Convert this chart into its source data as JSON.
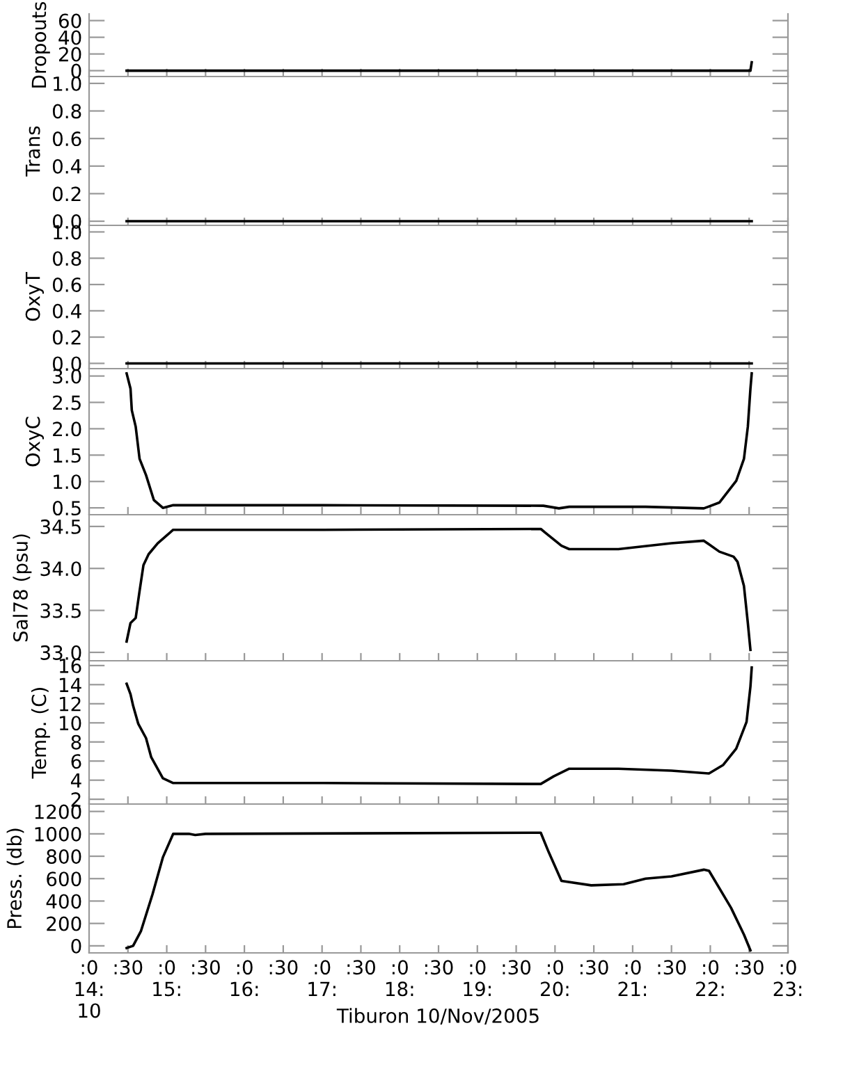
{
  "chart_data": [
    {
      "type": "line",
      "ylabel": "Dropouts",
      "x": [
        "2005-11-10T14:29",
        "2005-11-10T22:31",
        "2005-11-10T22:32"
      ],
      "series": [
        {
          "color": "#000000",
          "values": [
            0,
            0,
            10
          ]
        }
      ],
      "xlim": [
        "2005-11-10T14:00",
        "2005-11-10T23:00"
      ],
      "ylim": [
        -7,
        68
      ],
      "yticks": [
        0,
        20,
        40,
        60
      ],
      "tick_labels": "y"
    },
    {
      "type": "line",
      "ylabel": "Trans",
      "x": [
        "2005-11-10T14:29",
        "2005-11-10T22:32"
      ],
      "series": [
        {
          "color": "#000000",
          "values": [
            0,
            0
          ]
        }
      ],
      "xlim": [
        "2005-11-10T14:00",
        "2005-11-10T23:00"
      ],
      "ylim": [
        -0.03,
        1.05
      ],
      "yticks": [
        {
          "value": 0,
          "label": "0.0"
        },
        {
          "value": 0.2,
          "label": "0.2"
        },
        {
          "value": 0.4,
          "label": "0.4"
        },
        {
          "value": 0.6,
          "label": "0.6"
        },
        {
          "value": 0.8,
          "label": "0.8"
        },
        {
          "value": 1.0,
          "label": "1.0"
        }
      ],
      "tick_labels": "y"
    },
    {
      "type": "line",
      "ylabel": "OxyT",
      "x": [
        "2005-11-10T14:29",
        "2005-11-10T22:32"
      ],
      "series": [
        {
          "color": "#000000",
          "values": [
            0,
            0
          ]
        }
      ],
      "xlim": [
        "2005-11-10T14:00",
        "2005-11-10T23:00"
      ],
      "ylim": [
        -0.04,
        1.05
      ],
      "yticks": [
        {
          "value": 0,
          "label": "0.0"
        },
        {
          "value": 0.2,
          "label": "0.2"
        },
        {
          "value": 0.4,
          "label": "0.4"
        },
        {
          "value": 0.6,
          "label": "0.6"
        },
        {
          "value": 0.8,
          "label": "0.8"
        },
        {
          "value": 1.0,
          "label": "1.0"
        }
      ],
      "tick_labels": "y"
    },
    {
      "type": "line",
      "ylabel": "OxyC",
      "x": [
        "2005-11-10T14:29",
        "2005-11-10T14:32",
        "2005-11-10T14:33",
        "2005-11-10T14:36",
        "2005-11-10T14:39",
        "2005-11-10T14:44",
        "2005-11-10T14:50",
        "2005-11-10T14:57",
        "2005-11-10T15:05",
        "2005-11-10T17:01",
        "2005-11-10T19:51",
        "2005-11-10T20:03",
        "2005-11-10T20:11",
        "2005-11-10T21:10",
        "2005-11-10T21:55",
        "2005-11-10T22:07",
        "2005-11-10T22:20",
        "2005-11-10T22:26",
        "2005-11-10T22:29",
        "2005-11-10T22:31",
        "2005-11-10T22:32"
      ],
      "series": [
        {
          "color": "#000000",
          "values": [
            3.05,
            2.76,
            2.35,
            2.04,
            1.43,
            1.12,
            0.65,
            0.5,
            0.55,
            0.55,
            0.54,
            0.49,
            0.52,
            0.52,
            0.49,
            0.6,
            1.01,
            1.43,
            2.04,
            2.76,
            3.05
          ]
        }
      ],
      "xlim": [
        "2005-11-10T14:00",
        "2005-11-10T23:00"
      ],
      "ylim": [
        0.37,
        3.14
      ],
      "yticks": [
        {
          "value": 0.5,
          "label": "0.5"
        },
        {
          "value": 1.0,
          "label": "1.0"
        },
        {
          "value": 1.5,
          "label": "1.5"
        },
        {
          "value": 2.0,
          "label": "2.0"
        },
        {
          "value": 2.5,
          "label": "2.5"
        },
        {
          "value": 3.0,
          "label": "3.0"
        }
      ],
      "tick_labels": "y"
    },
    {
      "type": "line",
      "ylabel": "Sal78 (psu)",
      "x": [
        "2005-11-10T14:29",
        "2005-11-10T14:32",
        "2005-11-10T14:36",
        "2005-11-10T14:39",
        "2005-11-10T14:42",
        "2005-11-10T14:46",
        "2005-11-10T14:53",
        "2005-11-10T15:05",
        "2005-11-10T17:01",
        "2005-11-10T19:49",
        "2005-11-10T19:53",
        "2005-11-10T20:05",
        "2005-11-10T20:11",
        "2005-11-10T20:49",
        "2005-11-10T21:30",
        "2005-11-10T21:55",
        "2005-11-10T22:07",
        "2005-11-10T22:18",
        "2005-11-10T22:21",
        "2005-11-10T22:26",
        "2005-11-10T22:29",
        "2005-11-10T22:31"
      ],
      "series": [
        {
          "color": "#000000",
          "values": [
            33.13,
            33.35,
            33.41,
            33.73,
            34.04,
            34.17,
            34.3,
            34.46,
            34.46,
            34.47,
            34.42,
            34.27,
            34.23,
            34.23,
            34.3,
            34.33,
            34.2,
            34.14,
            34.08,
            33.79,
            33.35,
            33.03
          ]
        }
      ],
      "xlim": [
        "2005-11-10T14:00",
        "2005-11-10T23:00"
      ],
      "ylim": [
        32.9,
        34.64
      ],
      "yticks": [
        {
          "value": 33.0,
          "label": "33.0"
        },
        {
          "value": 33.5,
          "label": "33.5"
        },
        {
          "value": 34.0,
          "label": "34.0"
        },
        {
          "value": 34.5,
          "label": "34.5"
        }
      ],
      "tick_labels": "y"
    },
    {
      "type": "line",
      "ylabel": "Temp. (C)",
      "x": [
        "2005-11-10T14:29",
        "2005-11-10T14:32",
        "2005-11-10T14:34",
        "2005-11-10T14:38",
        "2005-11-10T14:44",
        "2005-11-10T14:48",
        "2005-11-10T14:57",
        "2005-11-10T15:05",
        "2005-11-10T17:01",
        "2005-11-10T19:49",
        "2005-11-10T19:59",
        "2005-11-10T20:11",
        "2005-11-10T20:49",
        "2005-11-10T21:30",
        "2005-11-10T21:59",
        "2005-11-10T22:10",
        "2005-11-10T22:20",
        "2005-11-10T22:28",
        "2005-11-10T22:31",
        "2005-11-10T22:32"
      ],
      "series": [
        {
          "color": "#000000",
          "values": [
            14.1,
            13.0,
            11.8,
            9.9,
            8.4,
            6.4,
            4.2,
            3.7,
            3.7,
            3.6,
            4.4,
            5.2,
            5.2,
            5.0,
            4.7,
            5.6,
            7.3,
            10.1,
            13.8,
            15.8
          ]
        }
      ],
      "xlim": [
        "2005-11-10T14:00",
        "2005-11-10T23:00"
      ],
      "ylim": [
        1.5,
        16.5
      ],
      "yticks": [
        2,
        4,
        6,
        8,
        10,
        12,
        14,
        16
      ],
      "tick_labels": "y"
    },
    {
      "type": "line",
      "ylabel": "Press. (db)",
      "xlabel": "Tiburon 10/Nov/2005",
      "x": [
        "2005-11-10T14:29",
        "2005-11-10T14:34",
        "2005-11-10T14:40",
        "2005-11-10T14:49",
        "2005-11-10T14:57",
        "2005-11-10T15:05",
        "2005-11-10T15:17",
        "2005-11-10T15:22",
        "2005-11-10T15:30",
        "2005-11-10T19:49",
        "2005-11-10T19:55",
        "2005-11-10T20:05",
        "2005-11-10T20:28",
        "2005-11-10T20:53",
        "2005-11-10T21:10",
        "2005-11-10T21:30",
        "2005-11-10T21:55",
        "2005-11-10T21:59",
        "2005-11-10T22:16",
        "2005-11-10T22:26",
        "2005-11-10T22:31"
      ],
      "series": [
        {
          "color": "#000000",
          "values": [
            -20,
            0,
            130,
            460,
            790,
            1000,
            1000,
            990,
            1000,
            1010,
            840,
            580,
            540,
            550,
            600,
            620,
            680,
            670,
            340,
            100,
            -40
          ]
        }
      ],
      "xlim": [
        "2005-11-10T14:00",
        "2005-11-10T23:00"
      ],
      "ylim": [
        -63,
        1266
      ],
      "yticks": [
        0,
        200,
        400,
        600,
        800,
        1000,
        1200
      ],
      "xticks": [
        {
          "value": "2005-11-10T14:00",
          "label": ":0\n14:\n10"
        },
        {
          "value": "2005-11-10T14:30",
          "label": ":30"
        },
        {
          "value": "2005-11-10T15:00",
          "label": ":0\n15:"
        },
        {
          "value": "2005-11-10T15:30",
          "label": ":30"
        },
        {
          "value": "2005-11-10T16:00",
          "label": ":0\n16:"
        },
        {
          "value": "2005-11-10T16:30",
          "label": ":30"
        },
        {
          "value": "2005-11-10T17:00",
          "label": ":0\n17:"
        },
        {
          "value": "2005-11-10T17:30",
          "label": ":30"
        },
        {
          "value": "2005-11-10T18:00",
          "label": ":0\n18:"
        },
        {
          "value": "2005-11-10T18:30",
          "label": ":30"
        },
        {
          "value": "2005-11-10T19:00",
          "label": ":0\n19:"
        },
        {
          "value": "2005-11-10T19:30",
          "label": ":30"
        },
        {
          "value": "2005-11-10T20:00",
          "label": ":0\n20:"
        },
        {
          "value": "2005-11-10T20:30",
          "label": ":30"
        },
        {
          "value": "2005-11-10T21:00",
          "label": ":0\n21:"
        },
        {
          "value": "2005-11-10T21:30",
          "label": ":30"
        },
        {
          "value": "2005-11-10T22:00",
          "label": ":0\n22:"
        },
        {
          "value": "2005-11-10T22:30",
          "label": ":30"
        },
        {
          "value": "2005-11-10T23:00",
          "label": ":0\n23:"
        }
      ]
    }
  ]
}
